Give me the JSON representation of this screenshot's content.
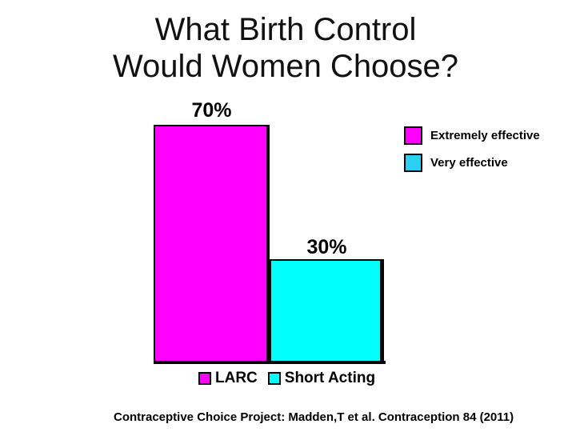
{
  "slide": {
    "title_line1": "What Birth Control",
    "title_line2": "Would Women Choose?",
    "citation": "Contraceptive Choice Project: Madden,T et al. Contraception 84 (2011)",
    "background_color": "#ffffff",
    "text_color": "#000000"
  },
  "chart_data": {
    "type": "bar",
    "categories": [
      "LARC",
      "Short Acting"
    ],
    "values": [
      70,
      30
    ],
    "value_labels": [
      "70%",
      "30%"
    ],
    "bar_colors": [
      "#ff00ff",
      "#00ffff"
    ],
    "bar_outline_color": "#000000",
    "ylim": [
      0,
      100
    ],
    "grid": false,
    "axis_line": true,
    "legend_position": "right",
    "effectiveness_legend": [
      {
        "label": "Extremely effective",
        "color": "#ff00ff"
      },
      {
        "label": "Very effective",
        "color": "#2bcfef"
      }
    ],
    "category_legend": [
      {
        "label": "LARC",
        "color": "#ff00ff"
      },
      {
        "label": "Short Acting",
        "color": "#00ffff"
      }
    ]
  }
}
